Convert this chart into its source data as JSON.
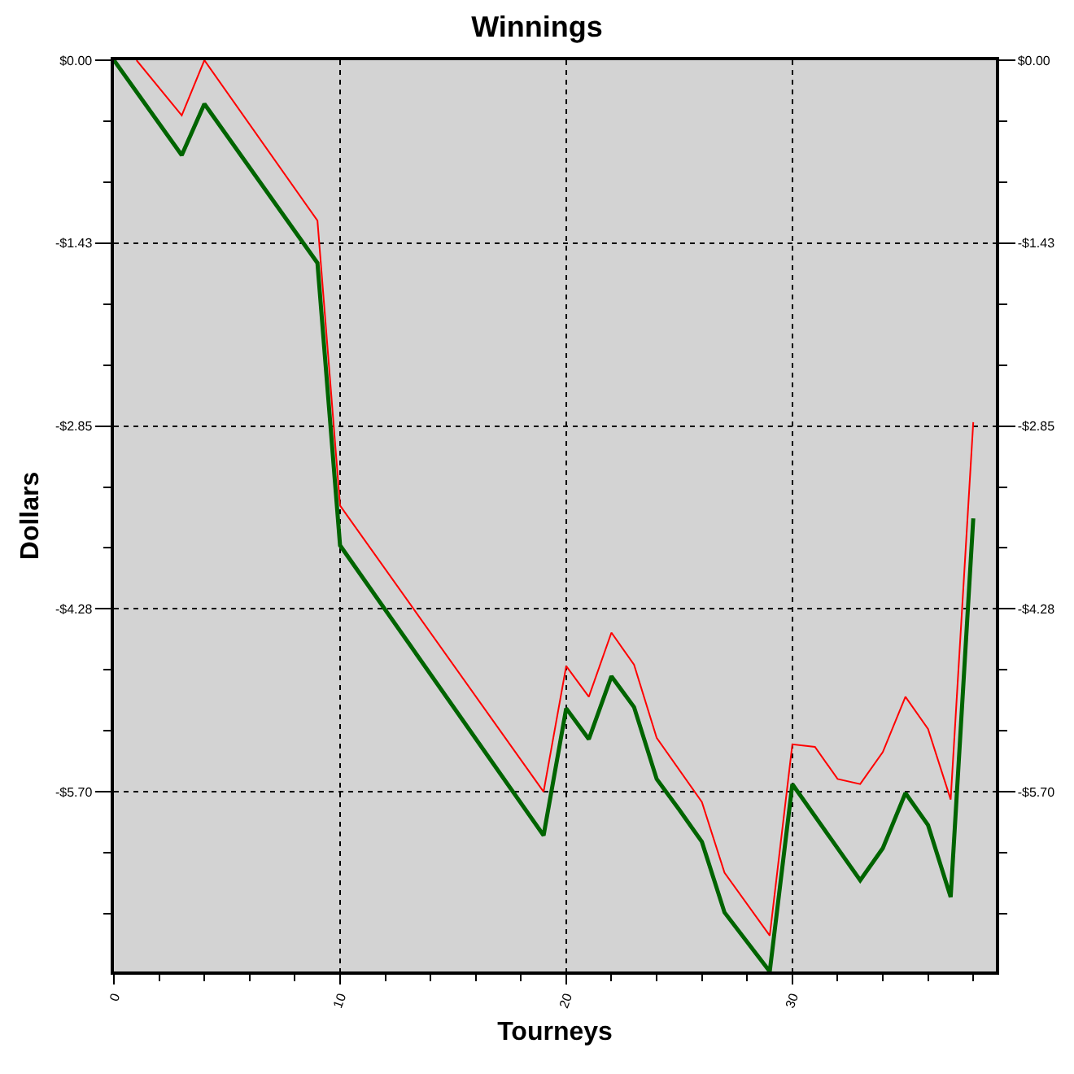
{
  "chart_data": {
    "type": "line",
    "title": "Winnings",
    "xlabel": "Tourneys",
    "ylabel": "Dollars",
    "xlim": [
      0,
      39
    ],
    "xticks": [
      0,
      10,
      20,
      30
    ],
    "ylim": [
      -7.1,
      0
    ],
    "yticks": [
      {
        "value": 0,
        "label": "$0.00"
      },
      {
        "value": -1.425,
        "label": "-$1.43"
      },
      {
        "value": -2.85,
        "label": "-$2.85"
      },
      {
        "value": -4.275,
        "label": "-$4.28"
      },
      {
        "value": -5.7,
        "label": "-$5.70"
      }
    ],
    "y2lim": [
      -7.1,
      0
    ],
    "y2ticks": [
      {
        "value": 0,
        "label": "$0.00"
      },
      {
        "value": -1.425,
        "label": "-$1.43"
      },
      {
        "value": -2.85,
        "label": "-$2.85"
      },
      {
        "value": -4.275,
        "label": "-$4.28"
      },
      {
        "value": -5.7,
        "label": "-$5.70"
      }
    ],
    "grid": true,
    "line_style": "solid",
    "series": [
      {
        "color": "#ff0000",
        "x": [
          1,
          3,
          4,
          9,
          10,
          19,
          20,
          21,
          22,
          23,
          24,
          26,
          27,
          29,
          30,
          31,
          32,
          33,
          34,
          35,
          36,
          37,
          38
        ],
        "values": [
          0,
          -0.43,
          0,
          -1.25,
          -3.47,
          -5.7,
          -4.72,
          -4.96,
          -4.46,
          -4.71,
          -5.28,
          -5.78,
          -6.33,
          -6.82,
          -5.33,
          -5.35,
          -5.6,
          -5.64,
          -5.39,
          -4.96,
          -5.21,
          -5.76,
          -2.82
        ]
      },
      {
        "color": "#006400",
        "x": [
          0,
          3,
          4,
          9,
          10,
          19,
          20,
          21,
          22,
          23,
          24,
          25,
          26,
          27,
          29,
          30,
          33,
          34,
          35,
          36,
          37,
          38
        ],
        "values": [
          0,
          -0.74,
          -0.34,
          -1.58,
          -3.78,
          -6.04,
          -5.05,
          -5.29,
          -4.8,
          -5.04,
          -5.6,
          -5.84,
          -6.09,
          -6.64,
          -7.1,
          -5.64,
          -6.39,
          -6.14,
          -5.71,
          -5.96,
          -6.52,
          -3.57
        ]
      }
    ]
  }
}
